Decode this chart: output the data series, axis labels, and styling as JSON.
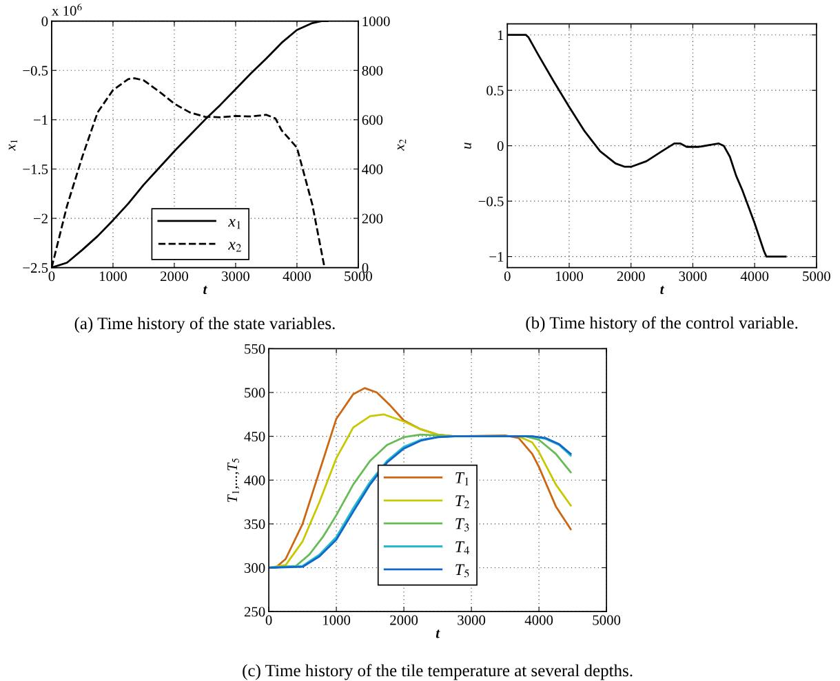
{
  "chart_data": [
    {
      "type": "line",
      "xlabel": "t",
      "ylabel": "x$_{1}$",
      "y2label": "x$_{2}$",
      "annotations": [
        "x 10$^{6}$",
        "(a) Time history of the state variables."
      ],
      "xlim": [
        0,
        5000
      ],
      "xticks": [
        0,
        1000,
        2000,
        3000,
        4000,
        5000
      ],
      "ylim": [
        -2.5,
        0
      ],
      "yticks": [
        -2.5,
        -2,
        -1.5,
        -1,
        -0.5,
        0
      ],
      "y2lim": [
        0,
        1000
      ],
      "y2ticks": [
        0,
        200,
        400,
        600,
        800,
        1000
      ],
      "grid": true,
      "legend": "bottom",
      "series": [
        {
          "name": "x$_{1}$",
          "color": "#000000",
          "line_style": "solid",
          "x": [
            0,
            250,
            500,
            750,
            1000,
            1250,
            1500,
            1750,
            2000,
            2250,
            2500,
            2750,
            3000,
            3250,
            3500,
            3750,
            4000,
            4250,
            4400,
            4500
          ],
          "values": [
            -2.5,
            -2.45,
            -2.32,
            -2.18,
            -2.02,
            -1.85,
            -1.66,
            -1.49,
            -1.32,
            -1.16,
            -1.0,
            -0.85,
            -0.69,
            -0.53,
            -0.38,
            -0.22,
            -0.09,
            -0.02,
            0,
            0
          ]
        },
        {
          "name": "x$_{2}$",
          "color": "#000000",
          "line_style": "dashed",
          "axis": "y2",
          "x": [
            0,
            250,
            500,
            750,
            1000,
            1250,
            1350,
            1500,
            1750,
            2000,
            2250,
            2500,
            2750,
            3000,
            3250,
            3500,
            3650,
            3750,
            4000,
            4250,
            4450
          ],
          "values": [
            0,
            250,
            450,
            630,
            720,
            765,
            768,
            760,
            715,
            665,
            630,
            612,
            610,
            615,
            613,
            620,
            605,
            557,
            487,
            257,
            0
          ]
        }
      ]
    },
    {
      "type": "line",
      "xlabel": "t",
      "ylabel": "u",
      "annotations": [
        "(b) Time history of the control variable."
      ],
      "xlim": [
        0,
        5000
      ],
      "xticks": [
        0,
        1000,
        2000,
        3000,
        4000,
        5000
      ],
      "ylim": [
        -1.1,
        1.1
      ],
      "yticks": [
        -1,
        -0.5,
        0,
        0.5,
        1
      ],
      "grid": true,
      "series": [
        {
          "color": "#000000",
          "x": [
            0,
            300,
            340,
            500,
            750,
            1000,
            1250,
            1500,
            1750,
            1900,
            2000,
            2250,
            2500,
            2700,
            2800,
            2900,
            3100,
            3300,
            3420,
            3500,
            3600,
            3700,
            3800,
            4000,
            4150,
            4190,
            4500
          ],
          "values": [
            1,
            1,
            0.98,
            0.82,
            0.58,
            0.35,
            0.13,
            -0.05,
            -0.16,
            -0.19,
            -0.19,
            -0.14,
            -0.05,
            0.02,
            0.02,
            -0.01,
            -0.01,
            0.01,
            0.02,
            0.0,
            -0.1,
            -0.27,
            -0.4,
            -0.7,
            -0.95,
            -1,
            -1
          ]
        }
      ]
    },
    {
      "type": "line",
      "xlabel": "t",
      "ylabel": "T$_{1}$,...,T$_{5}$",
      "annotations": [
        "(c) Time history of the tile temperature at several depths."
      ],
      "xlim": [
        0,
        5000
      ],
      "xticks": [
        0,
        1000,
        2000,
        3000,
        4000,
        5000
      ],
      "ylim": [
        250,
        550
      ],
      "yticks": [
        250,
        300,
        350,
        400,
        450,
        500,
        550
      ],
      "grid": true,
      "legend": "bottom",
      "series": [
        {
          "name": "T$_{1}$",
          "color": "#cc6611",
          "x": [
            0,
            100,
            250,
            500,
            750,
            1000,
            1250,
            1420,
            1600,
            1800,
            2000,
            2250,
            2500,
            2750,
            3500,
            3700,
            3900,
            4000,
            4250,
            4470
          ],
          "values": [
            300,
            300,
            310,
            350,
            410,
            470,
            498,
            505,
            500,
            485,
            468,
            458,
            452,
            450,
            451,
            448,
            430,
            415,
            370,
            344
          ]
        },
        {
          "name": "T$_{2}$",
          "color": "#c8c800",
          "x": [
            0,
            250,
            500,
            750,
            1000,
            1250,
            1500,
            1700,
            2000,
            2250,
            2500,
            2750,
            3700,
            3900,
            4000,
            4250,
            4470
          ],
          "values": [
            300,
            303,
            330,
            375,
            425,
            460,
            473,
            475,
            467,
            458,
            452,
            450,
            450,
            443,
            432,
            395,
            371
          ]
        },
        {
          "name": "T$_{3}$",
          "color": "#66bb55",
          "x": [
            0,
            400,
            600,
            800,
            1000,
            1250,
            1500,
            1750,
            2000,
            2250,
            2500,
            2750,
            3800,
            4000,
            4250,
            4470
          ],
          "values": [
            300,
            302,
            315,
            335,
            360,
            395,
            422,
            440,
            449,
            452,
            451,
            450,
            450,
            446,
            430,
            409
          ]
        },
        {
          "name": "T$_{4}$",
          "color": "#22bbcc",
          "x": [
            0,
            500,
            750,
            1000,
            1250,
            1500,
            1750,
            2000,
            2250,
            2500,
            2750,
            3900,
            4100,
            4300,
            4470
          ],
          "values": [
            300,
            302,
            315,
            335,
            368,
            398,
            422,
            438,
            446,
            449,
            450,
            450,
            447,
            440,
            428
          ]
        },
        {
          "name": "T$_{5}$",
          "color": "#1166cc",
          "x": [
            0,
            500,
            750,
            1000,
            1250,
            1500,
            1750,
            2000,
            2250,
            2500,
            2750,
            3900,
            4100,
            4300,
            4470
          ],
          "values": [
            300,
            301,
            313,
            332,
            364,
            395,
            420,
            436,
            445,
            449,
            450,
            450,
            448,
            441,
            430
          ]
        }
      ]
    }
  ]
}
